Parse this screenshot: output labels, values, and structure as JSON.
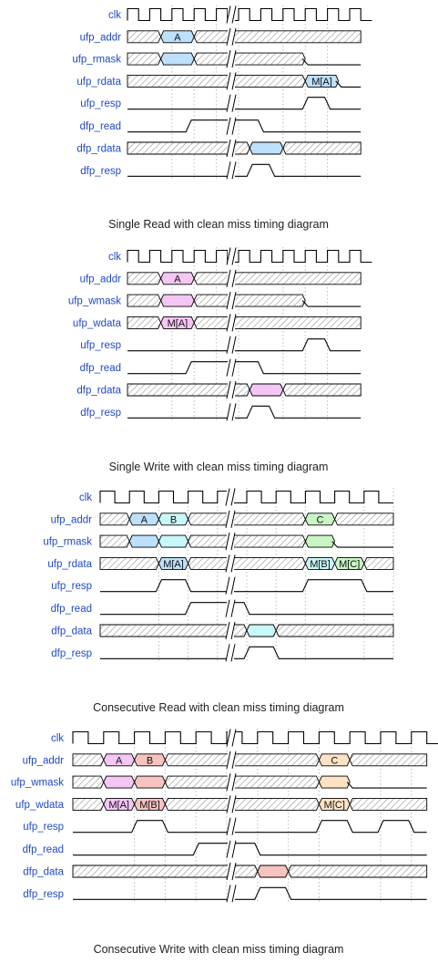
{
  "diagrams": [
    {
      "caption": "Single Read with clean miss timing diagram",
      "signals": [
        {
          "label": "clk"
        },
        {
          "label": "ufp_addr"
        },
        {
          "label": "ufp_rmask"
        },
        {
          "label": "ufp_rdata"
        },
        {
          "label": "ufp_resp"
        },
        {
          "label": "dfp_read"
        },
        {
          "label": "dfp_rdata"
        },
        {
          "label": "dfp_resp"
        }
      ],
      "bus_values": [
        {
          "text": "A",
          "color": "#bde0fb"
        },
        {
          "text": "",
          "color": "#bde0fb"
        },
        {
          "text": "M[A]",
          "color": "#bde0fb"
        },
        {
          "text": "",
          "color": "#bde0fb"
        }
      ]
    },
    {
      "caption": "Single Write with clean miss timing diagram",
      "signals": [
        {
          "label": "clk"
        },
        {
          "label": "ufp_addr"
        },
        {
          "label": "ufp_wmask"
        },
        {
          "label": "ufp_wdata"
        },
        {
          "label": "ufp_resp"
        },
        {
          "label": "dfp_read"
        },
        {
          "label": "dfp_rdata"
        },
        {
          "label": "dfp_resp"
        }
      ],
      "bus_values": [
        {
          "text": "A",
          "color": "#f4c6f4"
        },
        {
          "text": "",
          "color": "#f4c6f4"
        },
        {
          "text": "M[A]",
          "color": "#f4c6f4"
        },
        {
          "text": "",
          "color": "#f4c6f4"
        }
      ]
    },
    {
      "caption": "Consecutive Read with clean miss timing diagram",
      "signals": [
        {
          "label": "clk"
        },
        {
          "label": "ufp_addr"
        },
        {
          "label": "ufp_rmask"
        },
        {
          "label": "ufp_rdata"
        },
        {
          "label": "ufp_resp"
        },
        {
          "label": "dfp_read"
        },
        {
          "label": "dfp_data"
        },
        {
          "label": "dfp_resp"
        }
      ],
      "bus_values": [
        {
          "text": "A",
          "color": "#bde0fb"
        },
        {
          "text": "B",
          "color": "#c8f7f7"
        },
        {
          "text": "",
          "color": "#bde0fb"
        },
        {
          "text": "",
          "color": "#c8f7f7"
        },
        {
          "text": "M[A]",
          "color": "#bde0fb"
        },
        {
          "text": "C",
          "color": "#c9f5c4"
        },
        {
          "text": "",
          "color": "#c9f5c4"
        },
        {
          "text": "M[B]",
          "color": "#c8f7f7"
        },
        {
          "text": "M[C]",
          "color": "#c9f5c4"
        },
        {
          "text": "",
          "color": "#c8f7f7"
        }
      ]
    },
    {
      "caption": "Consecutive Write with clean miss timing diagram",
      "signals": [
        {
          "label": "clk"
        },
        {
          "label": "ufp_addr"
        },
        {
          "label": "ufp_wmask"
        },
        {
          "label": "ufp_wdata"
        },
        {
          "label": "ufp_resp"
        },
        {
          "label": "dfp_read"
        },
        {
          "label": "dfp_data"
        },
        {
          "label": "dfp_resp"
        }
      ],
      "bus_values": [
        {
          "text": "A",
          "color": "#f4c6f4"
        },
        {
          "text": "B",
          "color": "#f6c3c0"
        },
        {
          "text": "",
          "color": "#f4c6f4"
        },
        {
          "text": "",
          "color": "#f6c3c0"
        },
        {
          "text": "M[A]",
          "color": "#f4c6f4"
        },
        {
          "text": "M[B]",
          "color": "#f6c3c0"
        },
        {
          "text": "C",
          "color": "#fde2c3"
        },
        {
          "text": "",
          "color": "#fde2c3"
        },
        {
          "text": "M[C]",
          "color": "#fde2c3"
        },
        {
          "text": "",
          "color": "#f6c3c0"
        }
      ]
    }
  ],
  "colors": {
    "label": "#1f49c6",
    "line": "#000000",
    "hatch": "#9a9a9a",
    "grid": "#bbbbbb"
  }
}
